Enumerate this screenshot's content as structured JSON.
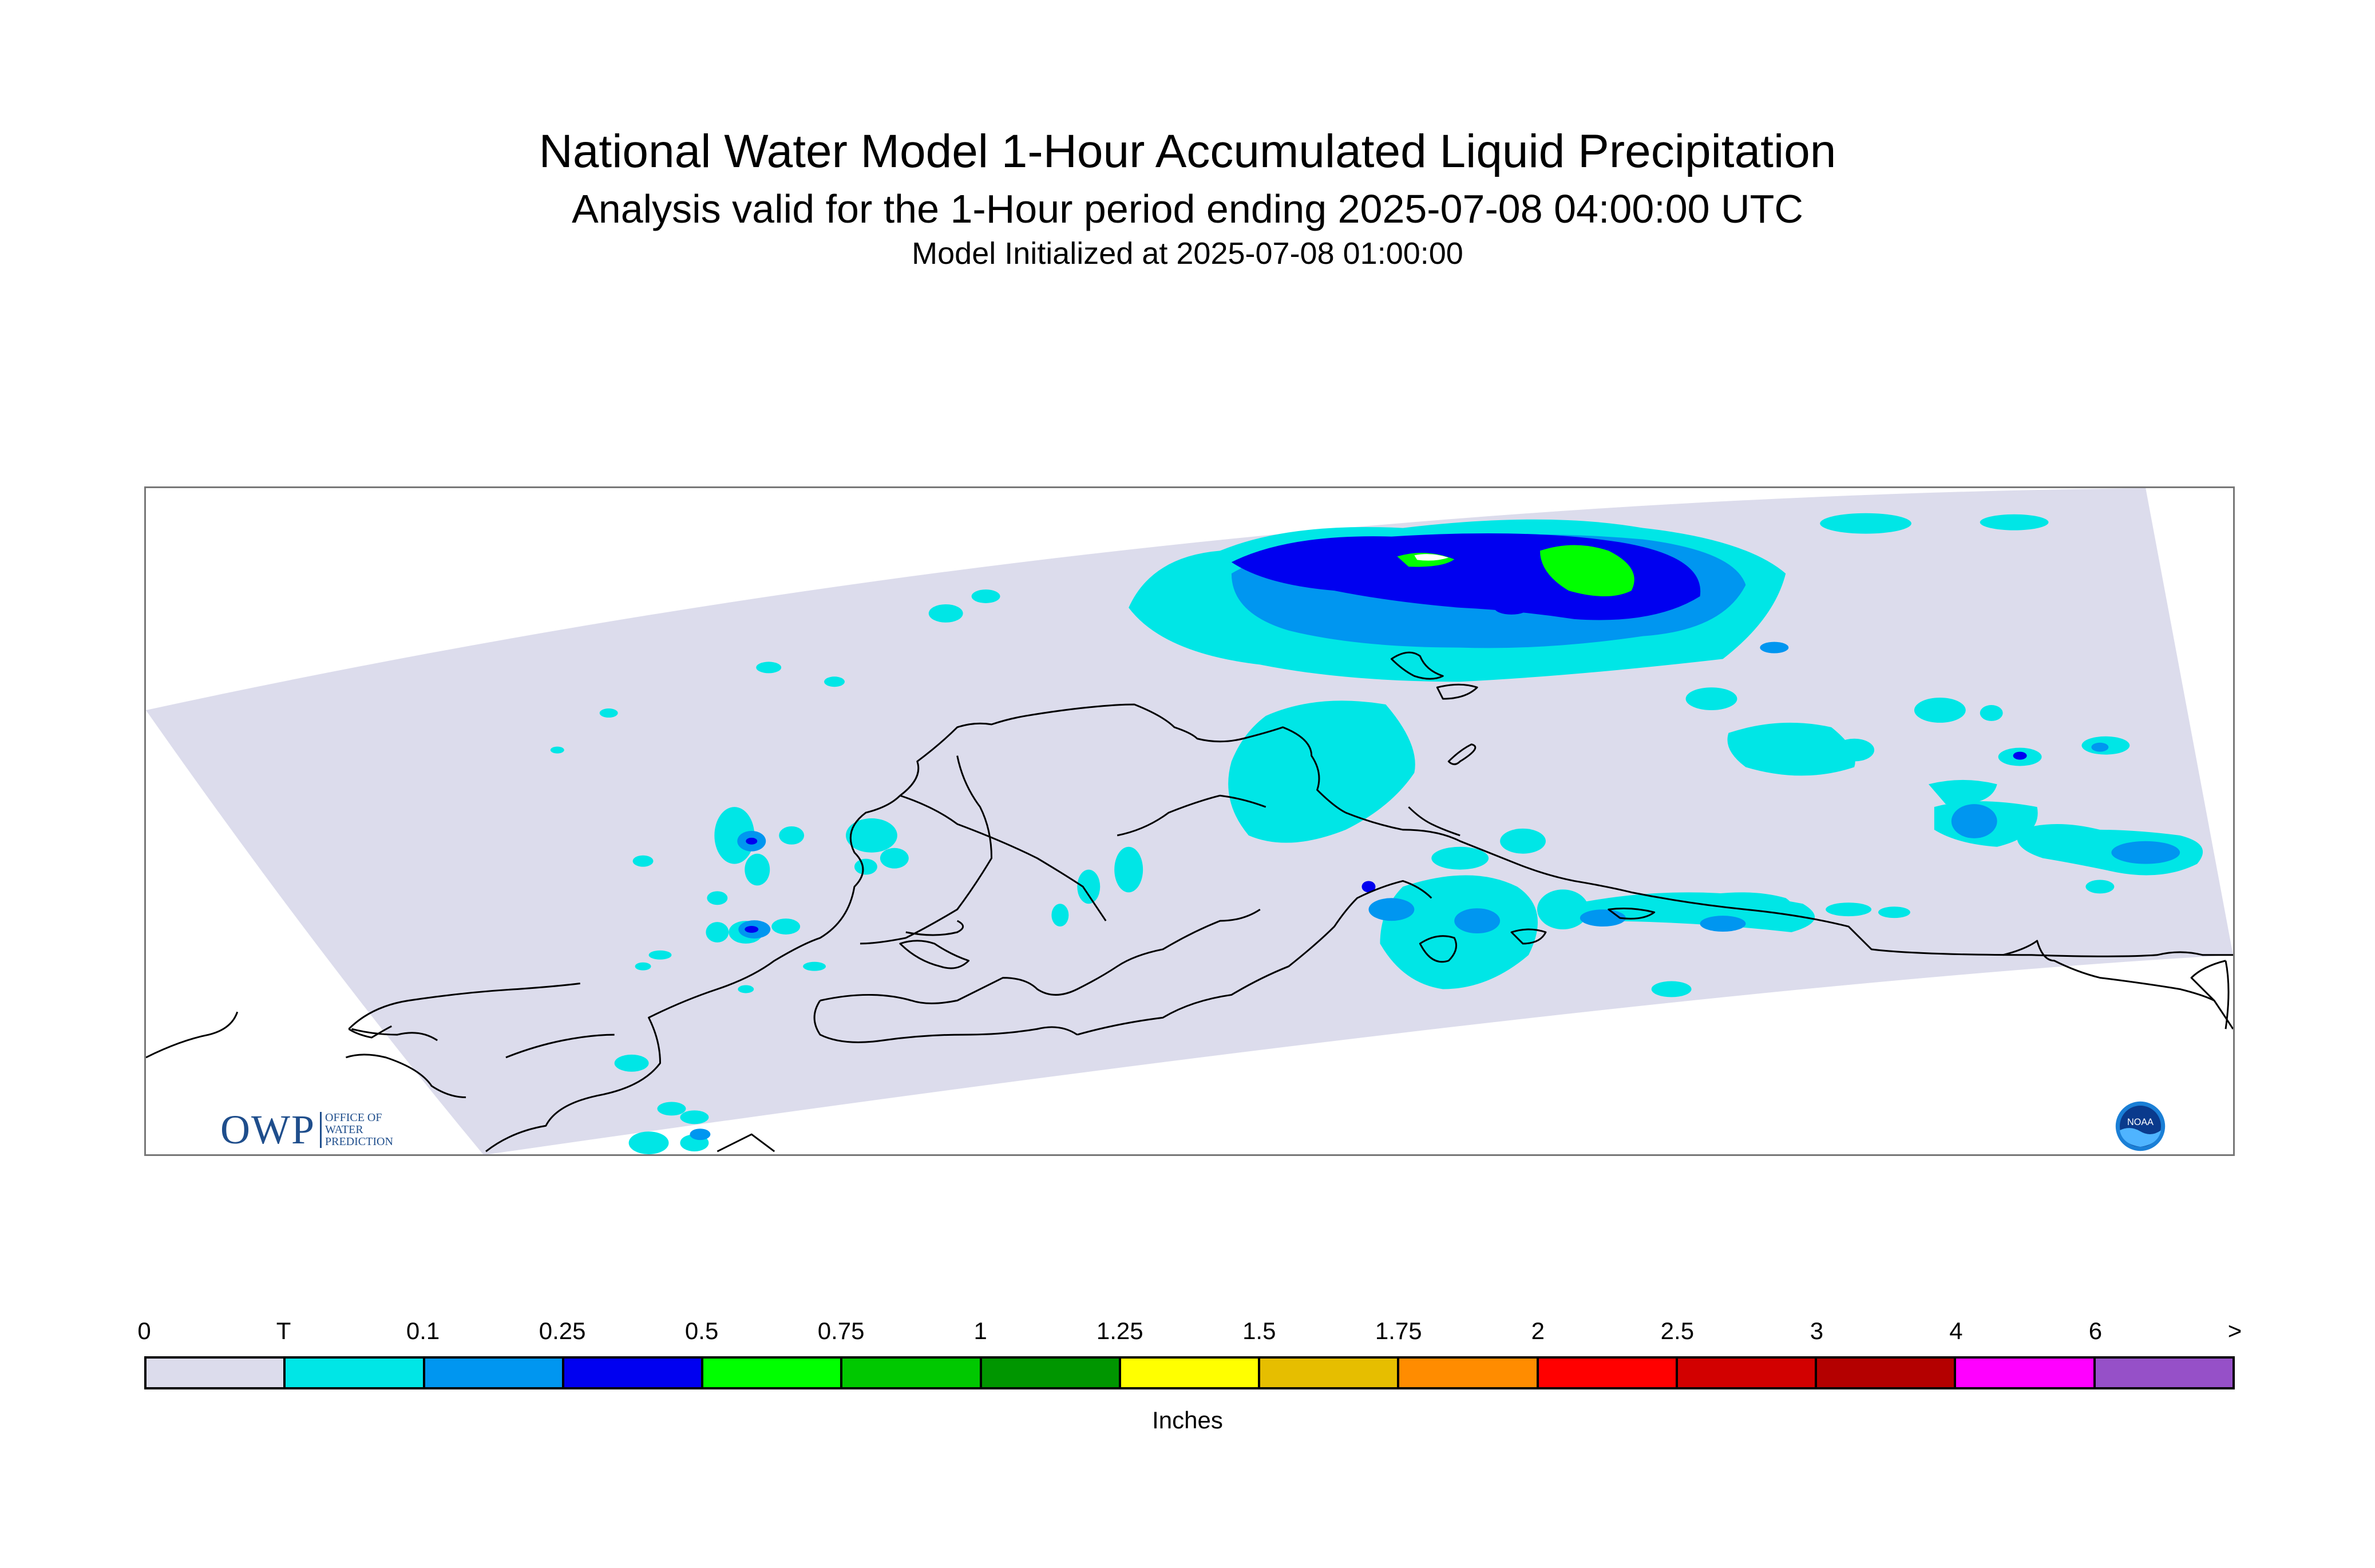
{
  "titles": {
    "main": "National Water Model 1-Hour Accumulated Liquid Precipitation",
    "sub": "Analysis valid for the 1-Hour period ending 2025-07-08 04:00:00 UTC",
    "init": "Model Initialized at 2025-07-08 01:00:00"
  },
  "logos": {
    "owp_mark": "OWP",
    "owp_text": [
      "OFFICE OF",
      "WATER",
      "PREDICTION"
    ],
    "noaa_mark": "NOAA"
  },
  "legend": {
    "ticks": [
      "0",
      "T",
      "0.1",
      "0.25",
      "0.5",
      "0.75",
      "1",
      "1.25",
      "1.5",
      "1.75",
      "2",
      "2.5",
      "3",
      "4",
      "6",
      ">"
    ],
    "colors": [
      "#dcdcec",
      "#00e6e6",
      "#0096f0",
      "#0000f0",
      "#00ff00",
      "#00c800",
      "#009600",
      "#ffff00",
      "#e6be00",
      "#ff8c00",
      "#ff0000",
      "#d20000",
      "#b40000",
      "#ff00ff",
      "#9650c8"
    ],
    "units": "Inches"
  },
  "colors": {
    "domain": "#dcdcec",
    "trace": "#00e6e6",
    "light": "#0096f0",
    "moderate": "#0000f0",
    "heavy": "#00ff00",
    "coast": "#000000"
  }
}
